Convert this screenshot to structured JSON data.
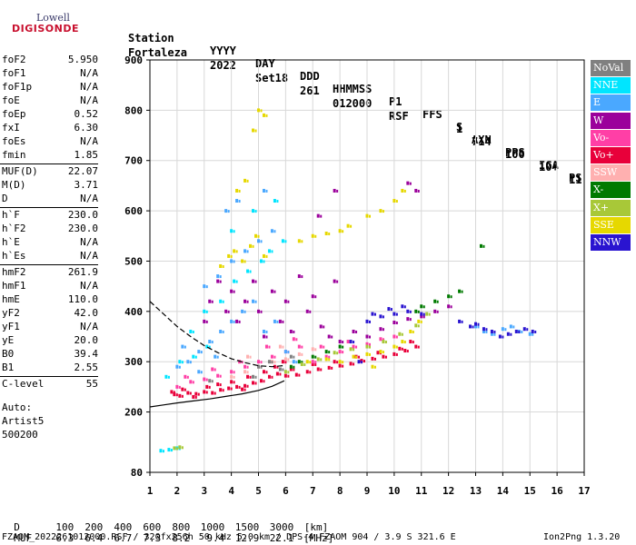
{
  "logo": {
    "top": "Lowell",
    "bottom": "DIGISONDE"
  },
  "header": {
    "row1": [
      "Station",
      "YYYY",
      "DAY",
      "DDD",
      "HHMMSS",
      "P1",
      "FFS",
      "S",
      "AXN",
      "PPS",
      "IGA",
      "PS"
    ],
    "row2": [
      "Fortaleza",
      "2022",
      "Set18",
      "261",
      "012000",
      "RSF",
      "1",
      "714",
      "100",
      "10+",
      "11"
    ]
  },
  "params": [
    {
      "k": "foF2",
      "v": "5.950"
    },
    {
      "k": "foF1",
      "v": "N/A"
    },
    {
      "k": "foF1p",
      "v": "N/A"
    },
    {
      "k": "foE",
      "v": "N/A"
    },
    {
      "k": "foEp",
      "v": "0.52"
    },
    {
      "k": "fxI",
      "v": "6.30"
    },
    {
      "k": "foEs",
      "v": "N/A"
    },
    {
      "k": "fmin",
      "v": "1.85"
    },
    {
      "k": "MUF(D)",
      "v": "22.07"
    },
    {
      "k": "M(D)",
      "v": "3.71"
    },
    {
      "k": "D",
      "v": "N/A"
    },
    {
      "k": "h`F",
      "v": "230.0"
    },
    {
      "k": "h`F2",
      "v": "230.0"
    },
    {
      "k": "h`E",
      "v": "N/A"
    },
    {
      "k": "h`Es",
      "v": "N/A"
    },
    {
      "k": "hmF2",
      "v": "261.9"
    },
    {
      "k": "hmF1",
      "v": "N/A"
    },
    {
      "k": "hmE",
      "v": "110.0"
    },
    {
      "k": "yF2",
      "v": "42.0"
    },
    {
      "k": "yF1",
      "v": "N/A"
    },
    {
      "k": "yE",
      "v": "20.0"
    },
    {
      "k": "B0",
      "v": "39.4"
    },
    {
      "k": "B1",
      "v": "2.55"
    },
    {
      "k": "C-level",
      "v": "55"
    }
  ],
  "autoscale": {
    "line1": "Auto:",
    "line2": "Artist5",
    "line3": "500200"
  },
  "legend": [
    {
      "label": "NoVal",
      "color": "#808080"
    },
    {
      "label": "NNE",
      "color": "#00e5ff"
    },
    {
      "label": "E",
      "color": "#4aa8ff"
    },
    {
      "label": "W",
      "color": "#9b009b"
    },
    {
      "label": "Vo-",
      "color": "#ff3fa6"
    },
    {
      "label": "Vo+",
      "color": "#e8003a"
    },
    {
      "label": "SSW",
      "color": "#ffb0b0"
    },
    {
      "label": "X-",
      "color": "#007a00"
    },
    {
      "label": "X+",
      "color": "#a8c838"
    },
    {
      "label": "SSE",
      "color": "#e6d800"
    },
    {
      "label": "NNW",
      "color": "#2a14d0"
    }
  ],
  "footer": {
    "d_label": "D",
    "d_values": [
      "100",
      "200",
      "400",
      "600",
      "800",
      "1000",
      "1500",
      "3000",
      "[km]"
    ],
    "muf_label": "MUF",
    "muf_values": [
      "6.3",
      "6.4",
      "6.7",
      "7.3",
      "8.2",
      "9.4",
      "12.9",
      "22.1",
      "[MHz]"
    ],
    "info": "FZAOM_2022261012000.RSF / 320fx256h 50 kHz 5.0 km / DPS-4 FZAOM 904 / 3.9 S 321.6 E",
    "version": "Ion2Png 1.3.20"
  },
  "chart_data": {
    "type": "scatter",
    "xlabel": "",
    "ylabel": "",
    "xlim": [
      1,
      17
    ],
    "ylim": [
      80,
      900
    ],
    "xticks": [
      1,
      2,
      3,
      4,
      5,
      6,
      7,
      8,
      9,
      10,
      11,
      12,
      13,
      14,
      15,
      16,
      17
    ],
    "yticks": [
      80,
      200,
      300,
      400,
      500,
      600,
      700,
      800,
      900
    ],
    "grid": true,
    "profile_curve": {
      "x": [
        1.0,
        1.5,
        2.0,
        2.6,
        3.2,
        3.8,
        4.4,
        5.0,
        5.5,
        5.95
      ],
      "y": [
        210,
        214,
        218,
        222,
        226,
        231,
        236,
        243,
        251,
        262
      ]
    },
    "trace_curve": {
      "x": [
        1.0,
        1.5,
        2.0,
        2.5,
        3.0,
        3.5,
        4.0,
        4.5,
        5.0,
        5.5,
        5.9
      ],
      "y": [
        420,
        395,
        370,
        350,
        332,
        318,
        306,
        298,
        292,
        290,
        292
      ]
    },
    "series": [
      {
        "color": "#e8003a",
        "points": [
          [
            1.9,
            235
          ],
          [
            2.1,
            232
          ],
          [
            2.4,
            238
          ],
          [
            2.7,
            236
          ],
          [
            3.0,
            240
          ],
          [
            3.3,
            238
          ],
          [
            3.6,
            244
          ],
          [
            3.9,
            247
          ],
          [
            4.2,
            250
          ],
          [
            4.5,
            252
          ],
          [
            4.8,
            258
          ],
          [
            5.1,
            262
          ],
          [
            5.4,
            270
          ],
          [
            5.7,
            276
          ],
          [
            6.0,
            272
          ],
          [
            6.4,
            274
          ],
          [
            6.8,
            280
          ],
          [
            7.2,
            285
          ],
          [
            7.6,
            288
          ],
          [
            8.0,
            292
          ],
          [
            8.4,
            296
          ],
          [
            8.8,
            302
          ],
          [
            9.2,
            306
          ],
          [
            9.6,
            310
          ],
          [
            10.0,
            315
          ],
          [
            10.4,
            322
          ],
          [
            10.8,
            330
          ],
          [
            1.8,
            240
          ],
          [
            2.2,
            245
          ],
          [
            2.6,
            230
          ],
          [
            3.5,
            255
          ],
          [
            4.0,
            260
          ],
          [
            4.6,
            270
          ],
          [
            5.2,
            280
          ],
          [
            5.6,
            290
          ],
          [
            6.2,
            285
          ],
          [
            7.0,
            295
          ],
          [
            7.8,
            300
          ],
          [
            8.6,
            310
          ],
          [
            9.4,
            318
          ],
          [
            10.2,
            326
          ],
          [
            10.6,
            340
          ],
          [
            3.1,
            250
          ],
          [
            4.4,
            245
          ],
          [
            5.9,
            300
          ]
        ]
      },
      {
        "color": "#ff3fa6",
        "points": [
          [
            2.0,
            250
          ],
          [
            2.5,
            260
          ],
          [
            3.0,
            265
          ],
          [
            3.5,
            272
          ],
          [
            4.0,
            280
          ],
          [
            4.5,
            290
          ],
          [
            5.0,
            300
          ],
          [
            5.5,
            310
          ],
          [
            6.0,
            320
          ],
          [
            6.5,
            330
          ],
          [
            7.0,
            300
          ],
          [
            7.5,
            310
          ],
          [
            8.0,
            320
          ],
          [
            8.5,
            330
          ],
          [
            9.0,
            335
          ],
          [
            9.5,
            345
          ],
          [
            10.0,
            350
          ],
          [
            2.3,
            270
          ],
          [
            3.3,
            285
          ],
          [
            4.3,
            300
          ],
          [
            5.3,
            330
          ],
          [
            6.3,
            345
          ],
          [
            7.3,
            330
          ],
          [
            8.3,
            340
          ]
        ]
      },
      {
        "color": "#9b009b",
        "points": [
          [
            3.0,
            380
          ],
          [
            3.2,
            420
          ],
          [
            3.5,
            460
          ],
          [
            3.8,
            400
          ],
          [
            4.0,
            440
          ],
          [
            4.2,
            380
          ],
          [
            4.5,
            420
          ],
          [
            4.8,
            460
          ],
          [
            5.0,
            400
          ],
          [
            5.2,
            350
          ],
          [
            5.5,
            440
          ],
          [
            5.8,
            380
          ],
          [
            6.0,
            420
          ],
          [
            6.2,
            360
          ],
          [
            6.5,
            470
          ],
          [
            6.8,
            400
          ],
          [
            7.0,
            430
          ],
          [
            7.3,
            370
          ],
          [
            7.6,
            350
          ],
          [
            8.0,
            340
          ],
          [
            8.5,
            360
          ],
          [
            9.0,
            350
          ],
          [
            9.5,
            365
          ],
          [
            10.0,
            378
          ],
          [
            10.5,
            385
          ],
          [
            11.0,
            390
          ],
          [
            11.5,
            400
          ],
          [
            12.0,
            410
          ],
          [
            7.8,
            460
          ],
          [
            7.2,
            590
          ],
          [
            7.8,
            640
          ],
          [
            10.8,
            640
          ],
          [
            10.5,
            655
          ]
        ]
      },
      {
        "color": "#4aa8ff",
        "points": [
          [
            2.0,
            290
          ],
          [
            2.4,
            300
          ],
          [
            2.8,
            320
          ],
          [
            3.2,
            340
          ],
          [
            3.6,
            360
          ],
          [
            4.0,
            380
          ],
          [
            4.4,
            400
          ],
          [
            4.8,
            420
          ],
          [
            5.2,
            360
          ],
          [
            5.6,
            380
          ],
          [
            6.0,
            320
          ],
          [
            6.3,
            300
          ],
          [
            3.0,
            450
          ],
          [
            3.5,
            470
          ],
          [
            4.0,
            500
          ],
          [
            4.5,
            520
          ],
          [
            5.0,
            540
          ],
          [
            5.5,
            560
          ],
          [
            3.8,
            600
          ],
          [
            4.2,
            620
          ],
          [
            5.2,
            640
          ],
          [
            13.0,
            370
          ],
          [
            13.3,
            360
          ],
          [
            13.6,
            355
          ],
          [
            14.0,
            365
          ],
          [
            14.3,
            370
          ],
          [
            14.6,
            360
          ],
          [
            15.0,
            355
          ],
          [
            2.2,
            330
          ],
          [
            2.8,
            280
          ],
          [
            3.4,
            310
          ]
        ]
      },
      {
        "color": "#00e5ff",
        "points": [
          [
            2.1,
            300
          ],
          [
            2.6,
            310
          ],
          [
            3.1,
            330
          ],
          [
            3.6,
            420
          ],
          [
            4.1,
            460
          ],
          [
            4.6,
            480
          ],
          [
            5.1,
            500
          ],
          [
            5.4,
            520
          ],
          [
            5.9,
            540
          ],
          [
            2.5,
            360
          ],
          [
            3.0,
            400
          ],
          [
            4.0,
            560
          ],
          [
            4.8,
            600
          ],
          [
            5.6,
            620
          ],
          [
            1.6,
            270
          ],
          [
            2.0,
            128
          ],
          [
            1.7,
            125
          ],
          [
            1.4,
            123
          ]
        ]
      },
      {
        "color": "#e6d800",
        "points": [
          [
            3.6,
            490
          ],
          [
            3.9,
            510
          ],
          [
            4.1,
            520
          ],
          [
            4.4,
            500
          ],
          [
            4.7,
            530
          ],
          [
            4.9,
            550
          ],
          [
            5.2,
            510
          ],
          [
            4.2,
            640
          ],
          [
            4.5,
            660
          ],
          [
            4.8,
            760
          ],
          [
            5.2,
            790
          ],
          [
            5.0,
            800
          ],
          [
            6.5,
            540
          ],
          [
            7.0,
            550
          ],
          [
            7.5,
            555
          ],
          [
            8.0,
            560
          ],
          [
            8.3,
            570
          ],
          [
            9.0,
            590
          ],
          [
            9.5,
            600
          ],
          [
            10.0,
            620
          ],
          [
            10.3,
            640
          ],
          [
            7.5,
            305
          ],
          [
            8.0,
            300
          ],
          [
            8.5,
            310
          ],
          [
            9.0,
            315
          ],
          [
            9.5,
            320
          ],
          [
            10.0,
            330
          ],
          [
            10.3,
            340
          ],
          [
            10.6,
            360
          ],
          [
            10.9,
            380
          ],
          [
            9.2,
            290
          ],
          [
            6.8,
            300
          ]
        ]
      },
      {
        "color": "#2a14d0",
        "points": [
          [
            9.0,
            380
          ],
          [
            9.5,
            390
          ],
          [
            10.0,
            395
          ],
          [
            10.5,
            400
          ],
          [
            11.0,
            395
          ],
          [
            9.8,
            405
          ],
          [
            13.0,
            375
          ],
          [
            13.3,
            365
          ],
          [
            13.6,
            360
          ],
          [
            13.9,
            350
          ],
          [
            14.2,
            355
          ],
          [
            14.5,
            360
          ],
          [
            14.8,
            365
          ],
          [
            15.1,
            360
          ],
          [
            12.4,
            380
          ],
          [
            12.8,
            370
          ],
          [
            10.3,
            410
          ],
          [
            9.2,
            395
          ],
          [
            8.4,
            340
          ],
          [
            8.7,
            300
          ]
        ]
      },
      {
        "color": "#007a00",
        "points": [
          [
            6.2,
            290
          ],
          [
            6.5,
            300
          ],
          [
            7.0,
            310
          ],
          [
            7.5,
            320
          ],
          [
            8.0,
            330
          ],
          [
            11.0,
            410
          ],
          [
            11.5,
            420
          ],
          [
            12.0,
            430
          ],
          [
            12.4,
            440
          ],
          [
            13.2,
            530
          ],
          [
            10.8,
            400
          ]
        ]
      },
      {
        "color": "#a8c838",
        "points": [
          [
            6.0,
            280
          ],
          [
            6.6,
            295
          ],
          [
            7.2,
            305
          ],
          [
            7.8,
            318
          ],
          [
            8.4,
            325
          ],
          [
            9.0,
            330
          ],
          [
            9.6,
            340
          ],
          [
            10.2,
            355
          ],
          [
            10.8,
            372
          ],
          [
            11.2,
            395
          ],
          [
            1.9,
            128
          ],
          [
            2.1,
            130
          ]
        ]
      },
      {
        "color": "#ffb0b0",
        "points": [
          [
            4.0,
            270
          ],
          [
            4.5,
            280
          ],
          [
            5.0,
            290
          ],
          [
            5.5,
            300
          ],
          [
            6.0,
            305
          ],
          [
            6.5,
            315
          ],
          [
            7.0,
            325
          ],
          [
            5.8,
            330
          ],
          [
            4.6,
            310
          ]
        ]
      },
      {
        "color": "#808080",
        "points": [
          [
            5.0,
            290
          ],
          [
            5.4,
            300
          ],
          [
            5.8,
            285
          ],
          [
            6.2,
            310
          ],
          [
            3.2,
            262
          ],
          [
            4.8,
            270
          ]
        ]
      }
    ]
  }
}
